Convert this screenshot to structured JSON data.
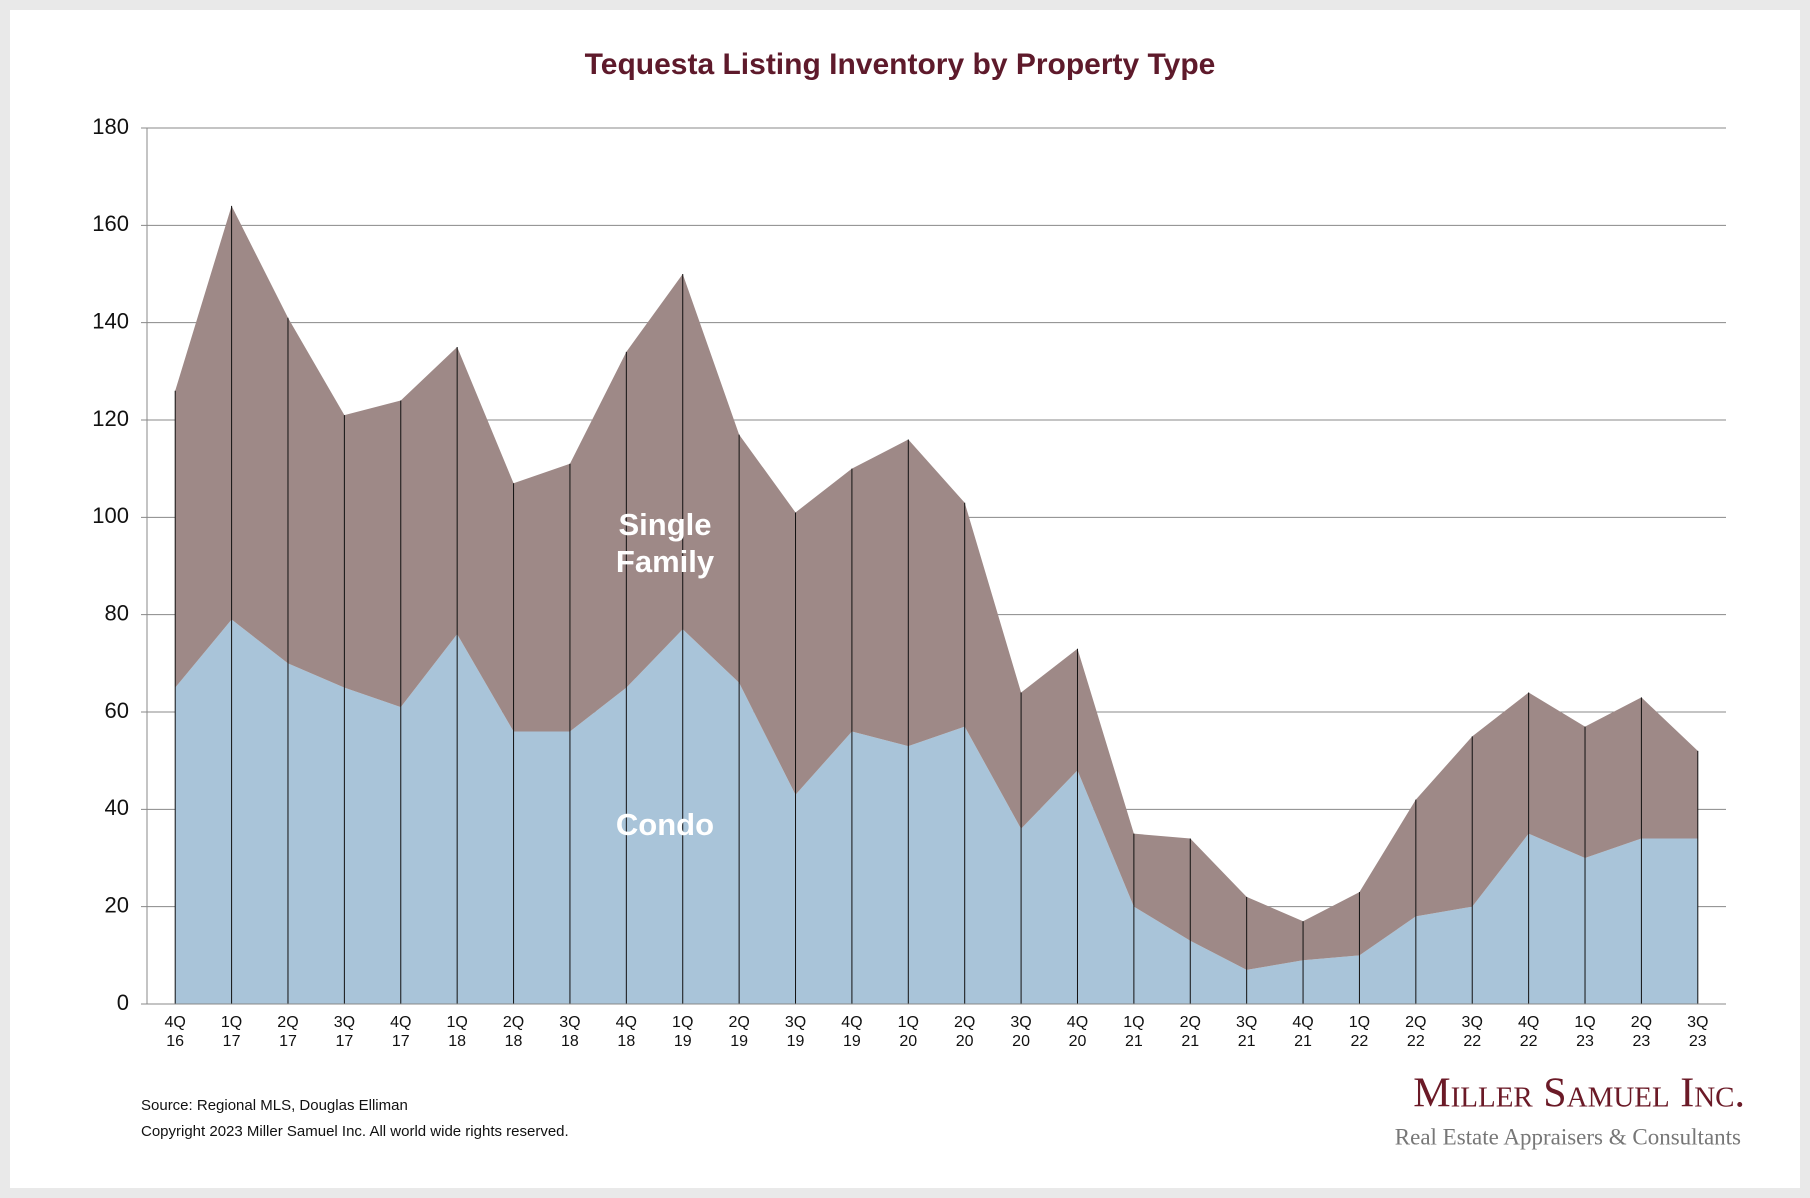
{
  "chart_data": {
    "type": "stacked-area",
    "title": "Tequesta Listing Inventory by Property Type",
    "categories": [
      "4Q\n16",
      "1Q\n17",
      "2Q\n17",
      "3Q\n17",
      "4Q\n17",
      "1Q\n18",
      "2Q\n18",
      "3Q\n18",
      "4Q\n18",
      "1Q\n19",
      "2Q\n19",
      "3Q\n19",
      "4Q\n19",
      "1Q\n20",
      "2Q\n20",
      "3Q\n20",
      "4Q\n20",
      "1Q\n21",
      "2Q\n21",
      "3Q\n21",
      "4Q\n21",
      "1Q\n22",
      "2Q\n22",
      "3Q\n22",
      "4Q\n22",
      "1Q\n23",
      "2Q\n23",
      "3Q\n23"
    ],
    "series": [
      {
        "name": "Condo",
        "color": "#a9c4d9",
        "values": [
          65,
          79,
          70,
          65,
          61,
          76,
          56,
          56,
          65,
          77,
          66,
          43,
          56,
          53,
          57,
          36,
          48,
          20,
          13,
          7,
          9,
          10,
          18,
          20,
          35,
          30,
          34,
          34
        ]
      },
      {
        "name": "Single Family",
        "color": "#9e8987",
        "values": [
          61,
          85,
          71,
          56,
          63,
          59,
          51,
          55,
          69,
          73,
          51,
          58,
          54,
          63,
          46,
          28,
          25,
          15,
          21,
          15,
          8,
          13,
          24,
          35,
          29,
          27,
          29,
          18
        ]
      }
    ],
    "ylim": [
      0,
      180
    ],
    "yticks": [
      0,
      20,
      40,
      60,
      80,
      100,
      120,
      140,
      160,
      180
    ],
    "grid": true,
    "source": "Source:  Regional MLS, Douglas Elliman",
    "copyright": "Copyright 2023 Miller Samuel Inc.  All world wide rights reserved."
  },
  "logo": {
    "name": "Miller Samuel Inc.",
    "tagline": "Real Estate Appraisers & Consultants"
  }
}
